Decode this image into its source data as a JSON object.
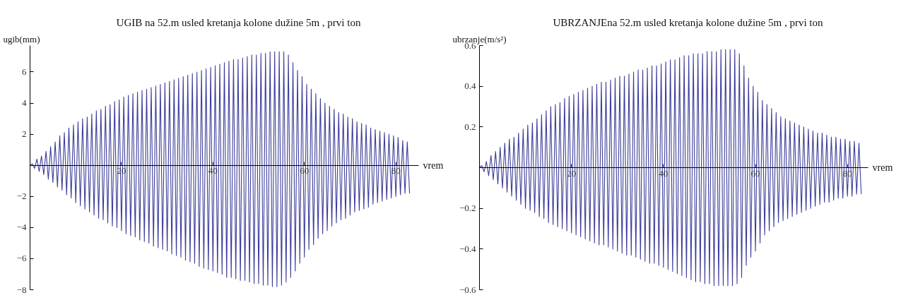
{
  "chart_data": [
    {
      "type": "line",
      "title": "UGIB na 52.m usled kretanja kolone dužine 5m , prvi ton",
      "xlabel": "vrem",
      "ylabel": "ugib(mm)",
      "x": [
        0,
        0.5,
        1,
        1.5,
        2,
        2.5,
        3,
        3.5,
        4,
        4.5,
        5,
        5.5,
        6,
        6.5,
        7,
        7.5,
        8,
        8.5,
        9,
        9.5,
        10,
        10.5,
        11,
        11.5,
        12,
        12.5,
        13,
        13.5,
        14,
        14.5,
        15,
        15.5,
        16,
        16.5,
        17,
        17.5,
        18,
        18.5,
        19,
        19.5,
        20,
        20.5,
        21,
        21.5,
        22,
        22.5,
        23,
        23.5,
        24,
        24.5,
        25,
        25.5,
        26,
        26.5,
        27,
        27.5,
        28,
        28.5,
        29,
        29.5,
        30,
        30.5,
        31,
        31.5,
        32,
        32.5,
        33,
        33.5,
        34,
        34.5,
        35,
        35.5,
        36,
        36.5,
        37,
        37.5,
        38,
        38.5,
        39,
        39.5,
        40,
        40.5,
        41,
        41.5,
        42,
        42.5,
        43,
        43.5,
        44,
        44.5,
        45,
        45.5,
        46,
        46.5,
        47,
        47.5,
        48,
        48.5,
        49,
        49.5,
        50,
        50.5,
        51,
        51.5,
        52,
        52.5,
        53,
        53.5,
        54,
        54.5,
        55,
        55.5,
        56,
        56.5,
        57,
        57.5,
        58,
        58.5,
        59,
        59.5,
        60,
        60.5,
        61,
        61.5,
        62,
        62.5,
        63,
        63.5,
        64,
        64.5,
        65,
        65.5,
        66,
        66.5,
        67,
        67.5,
        68,
        68.5,
        69,
        69.5,
        70,
        70.5,
        71,
        71.5,
        72,
        72.5,
        73,
        73.5,
        74,
        74.5,
        75,
        75.5,
        76,
        76.5,
        77,
        77.5,
        78,
        78.5,
        79,
        79.5,
        80,
        80.5,
        81,
        81.5,
        82,
        82.5,
        83
      ],
      "series": [
        {
          "color": "#3d3d99",
          "values": [
            0,
            0.1,
            -0.2,
            0.4,
            -0.4,
            0.6,
            -0.6,
            0.9,
            -0.9,
            1.2,
            -1.1,
            1.5,
            -1.4,
            1.9,
            -1.6,
            2.1,
            -1.9,
            2.4,
            -2.1,
            2.6,
            -2.4,
            2.8,
            -2.6,
            3.0,
            -2.8,
            3.1,
            -3.0,
            3.3,
            -3.2,
            3.5,
            -3.4,
            3.6,
            -3.5,
            3.8,
            -3.7,
            3.9,
            -3.9,
            4.1,
            -4.0,
            4.2,
            -4.2,
            4.4,
            -4.4,
            4.5,
            -4.5,
            4.6,
            -4.6,
            4.7,
            -4.8,
            4.8,
            -4.9,
            4.9,
            -5.0,
            5.0,
            -5.2,
            5.1,
            -5.3,
            5.2,
            -5.4,
            5.3,
            -5.5,
            5.4,
            -5.7,
            5.5,
            -5.8,
            5.6,
            -5.9,
            5.7,
            -6.1,
            5.8,
            -6.2,
            5.9,
            -6.3,
            6.0,
            -6.5,
            6.1,
            -6.6,
            6.2,
            -6.7,
            6.3,
            -6.8,
            6.4,
            -6.9,
            6.5,
            -7.0,
            6.6,
            -7.2,
            6.7,
            -7.2,
            6.8,
            -7.3,
            6.8,
            -7.4,
            6.9,
            -7.4,
            7.0,
            -7.5,
            7.1,
            -7.6,
            7.1,
            -7.6,
            7.2,
            -7.7,
            7.2,
            -7.7,
            7.3,
            -7.8,
            7.3,
            -7.8,
            7.3,
            -7.7,
            7.3,
            -7.5,
            7.1,
            -7.2,
            6.6,
            -6.8,
            6.1,
            -6.3,
            5.7,
            -5.9,
            5.2,
            -5.4,
            4.9,
            -5.1,
            4.6,
            -4.7,
            4.3,
            -4.4,
            4.0,
            -4.2,
            3.8,
            -3.9,
            3.6,
            -3.7,
            3.4,
            -3.5,
            3.3,
            -3.4,
            3.1,
            -3.2,
            3.0,
            -3.0,
            2.8,
            -2.9,
            2.7,
            -2.8,
            2.6,
            -2.7,
            2.4,
            -2.5,
            2.3,
            -2.4,
            2.2,
            -2.3,
            2.1,
            -2.2,
            2.0,
            -2.1,
            1.9,
            -2.0,
            1.8,
            -1.9,
            1.6,
            -1.8,
            1.5,
            -1.8
          ]
        }
      ],
      "xlim": [
        0,
        85
      ],
      "ylim": [
        -8,
        7.7
      ],
      "xticks": [
        20,
        40,
        60,
        80
      ],
      "yticks": [
        -8,
        -6,
        -4,
        -2,
        2,
        4,
        6
      ]
    },
    {
      "type": "line",
      "title": "UBRZANJEna 52.m usled kretanja kolone dužine 5m , prvi ton",
      "xlabel": "vrem",
      "ylabel": "ubrzanje(m/s²)",
      "x": [
        0,
        0.5,
        1,
        1.5,
        2,
        2.5,
        3,
        3.5,
        4,
        4.5,
        5,
        5.5,
        6,
        6.5,
        7,
        7.5,
        8,
        8.5,
        9,
        9.5,
        10,
        10.5,
        11,
        11.5,
        12,
        12.5,
        13,
        13.5,
        14,
        14.5,
        15,
        15.5,
        16,
        16.5,
        17,
        17.5,
        18,
        18.5,
        19,
        19.5,
        20,
        20.5,
        21,
        21.5,
        22,
        22.5,
        23,
        23.5,
        24,
        24.5,
        25,
        25.5,
        26,
        26.5,
        27,
        27.5,
        28,
        28.5,
        29,
        29.5,
        30,
        30.5,
        31,
        31.5,
        32,
        32.5,
        33,
        33.5,
        34,
        34.5,
        35,
        35.5,
        36,
        36.5,
        37,
        37.5,
        38,
        38.5,
        39,
        39.5,
        40,
        40.5,
        41,
        41.5,
        42,
        42.5,
        43,
        43.5,
        44,
        44.5,
        45,
        45.5,
        46,
        46.5,
        47,
        47.5,
        48,
        48.5,
        49,
        49.5,
        50,
        50.5,
        51,
        51.5,
        52,
        52.5,
        53,
        53.5,
        54,
        54.5,
        55,
        55.5,
        56,
        56.5,
        57,
        57.5,
        58,
        58.5,
        59,
        59.5,
        60,
        60.5,
        61,
        61.5,
        62,
        62.5,
        63,
        63.5,
        64,
        64.5,
        65,
        65.5,
        66,
        66.5,
        67,
        67.5,
        68,
        68.5,
        69,
        69.5,
        70,
        70.5,
        71,
        71.5,
        72,
        72.5,
        73,
        73.5,
        74,
        74.5,
        75,
        75.5,
        76,
        76.5,
        77,
        77.5,
        78,
        78.5,
        79,
        79.5,
        80,
        80.5,
        81,
        81.5,
        82,
        82.5,
        83
      ],
      "series": [
        {
          "color": "#3d3d99",
          "values": [
            0,
            0.01,
            -0.02,
            0.03,
            -0.04,
            0.06,
            -0.06,
            0.08,
            -0.08,
            0.1,
            -0.1,
            0.12,
            -0.12,
            0.14,
            -0.14,
            0.15,
            -0.16,
            0.17,
            -0.18,
            0.19,
            -0.2,
            0.21,
            -0.21,
            0.22,
            -0.22,
            0.24,
            -0.24,
            0.26,
            -0.25,
            0.28,
            -0.27,
            0.3,
            -0.28,
            0.31,
            -0.29,
            0.32,
            -0.3,
            0.34,
            -0.31,
            0.35,
            -0.32,
            0.36,
            -0.33,
            0.37,
            -0.34,
            0.38,
            -0.35,
            0.39,
            -0.36,
            0.4,
            -0.37,
            0.41,
            -0.38,
            0.42,
            -0.38,
            0.42,
            -0.39,
            0.43,
            -0.4,
            0.44,
            -0.41,
            0.45,
            -0.42,
            0.45,
            -0.43,
            0.46,
            -0.43,
            0.47,
            -0.44,
            0.48,
            -0.45,
            0.48,
            -0.46,
            0.49,
            -0.47,
            0.5,
            -0.47,
            0.5,
            -0.48,
            0.51,
            -0.49,
            0.52,
            -0.5,
            0.53,
            -0.51,
            0.53,
            -0.52,
            0.54,
            -0.53,
            0.55,
            -0.54,
            0.55,
            -0.55,
            0.56,
            -0.56,
            0.56,
            -0.56,
            0.56,
            -0.57,
            0.57,
            -0.57,
            0.57,
            -0.58,
            0.57,
            -0.58,
            0.58,
            -0.58,
            0.58,
            -0.58,
            0.58,
            -0.58,
            0.58,
            -0.57,
            0.56,
            -0.54,
            0.5,
            -0.48,
            0.44,
            -0.44,
            0.4,
            -0.41,
            0.37,
            -0.37,
            0.33,
            -0.33,
            0.31,
            -0.31,
            0.29,
            -0.29,
            0.27,
            -0.27,
            0.25,
            -0.26,
            0.24,
            -0.25,
            0.23,
            -0.24,
            0.22,
            -0.23,
            0.21,
            -0.22,
            0.2,
            -0.21,
            0.19,
            -0.2,
            0.18,
            -0.19,
            0.17,
            -0.18,
            0.17,
            -0.17,
            0.16,
            -0.17,
            0.15,
            -0.16,
            0.15,
            -0.15,
            0.14,
            -0.15,
            0.14,
            -0.14,
            0.13,
            -0.14,
            0.13,
            -0.13,
            0.12,
            -0.13
          ]
        }
      ],
      "xlim": [
        0,
        84.5
      ],
      "ylim": [
        -0.6,
        0.6
      ],
      "xticks": [
        20,
        40,
        60,
        80
      ],
      "yticks": [
        -0.6,
        -0.4,
        -0.2,
        0.2,
        0.4,
        0.6
      ]
    }
  ]
}
